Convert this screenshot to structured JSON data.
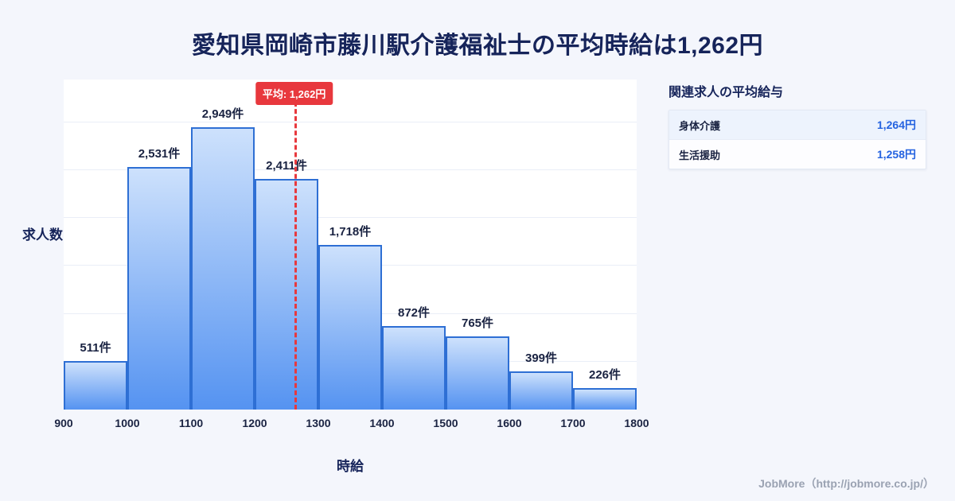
{
  "title": "愛知県岡崎市藤川駅介護福祉士の平均時給は1,262円",
  "chart_data": {
    "type": "bar",
    "xlabel": "時給",
    "ylabel": "求人数",
    "bin_edges": [
      900,
      1000,
      1100,
      1200,
      1300,
      1400,
      1500,
      1600,
      1700,
      1800
    ],
    "tick_labels": [
      "900",
      "1000",
      "1100",
      "1200",
      "1300",
      "1400",
      "1500",
      "1600",
      "1700",
      "1800"
    ],
    "values": [
      511,
      2531,
      2949,
      2411,
      1718,
      872,
      765,
      399,
      226
    ],
    "value_labels": [
      "511件",
      "2,531件",
      "2,949件",
      "2,411件",
      "1,718件",
      "872件",
      "765件",
      "399件",
      "226件"
    ],
    "ylim": [
      0,
      3100
    ],
    "grid": true,
    "average": 1262,
    "average_label": "平均: 1,262円",
    "colors": {
      "bar_top": "#cde1fc",
      "bar_bottom": "#5593f1",
      "bar_border": "#2e6fd4",
      "average_line": "#e8383d"
    }
  },
  "panel": {
    "title": "関連求人の平均給与",
    "value_color": "#2563e0",
    "rows": [
      {
        "label": "身体介護",
        "value": "1,264円"
      },
      {
        "label": "生活援助",
        "value": "1,258円"
      }
    ]
  },
  "footer": {
    "credit": "JobMore（http://jobmore.co.jp/）"
  }
}
